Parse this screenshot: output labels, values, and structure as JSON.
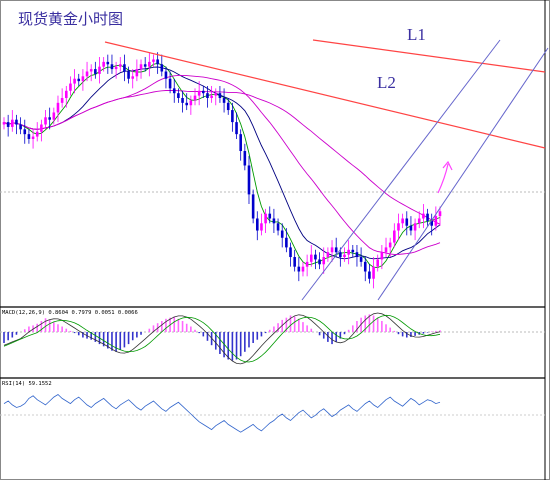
{
  "chart_data": {
    "type": "candlestick",
    "title": "现货黄金小时图",
    "annotations": [
      "L1",
      "L2"
    ],
    "colors": {
      "up_candle": "#ff00ff",
      "down_candle": "#0000cc",
      "ma_fast": "#009900",
      "ma_mid": "#000080",
      "ma_slow": "#cc00cc",
      "trendline": "#ff3333",
      "channel": "#6666cc",
      "macd_hist_pos": "#ff66ff",
      "macd_hist_neg": "#3333cc",
      "rsi": "#3366cc"
    },
    "price_close": [
      100,
      98,
      101,
      99,
      97,
      95,
      93,
      94,
      96,
      99,
      102,
      101,
      104,
      108,
      110,
      113,
      116,
      118,
      117,
      119,
      121,
      122,
      120,
      123,
      125,
      124,
      122,
      123,
      124,
      121,
      118,
      119,
      122,
      124,
      123,
      125,
      126,
      124,
      121,
      118,
      114,
      112,
      110,
      108,
      107,
      109,
      111,
      113,
      112,
      110,
      111,
      112,
      110,
      108,
      105,
      100,
      95,
      88,
      82,
      70,
      60,
      55,
      58,
      62,
      60,
      58,
      55,
      52,
      48,
      44,
      40,
      38,
      40,
      42,
      45,
      43,
      41,
      44,
      46,
      48,
      46,
      44,
      45,
      47,
      46,
      44,
      42,
      38,
      35,
      40,
      43,
      46,
      48,
      50,
      55,
      58,
      60,
      57,
      55,
      58,
      60,
      62,
      59,
      57,
      61,
      63
    ],
    "macd_params": "MACD(12,26,9) 0.8604 0.7979 0.0051 0.0066",
    "macd_hist": [
      -2,
      -1.5,
      -1,
      -0.5,
      0,
      0.5,
      1,
      1.2,
      1.5,
      2,
      2.5,
      2.2,
      1.8,
      1.4,
      1,
      0.6,
      0.2,
      -0.2,
      -0.6,
      -1,
      -1.2,
      -1.4,
      -1.8,
      -2.2,
      -2.6,
      -3,
      -3.4,
      -3.6,
      -3.2,
      -2.8,
      -2.2,
      -1.5,
      -1,
      -0.5,
      0,
      0.6,
      1.2,
      1.6,
      2,
      2.4,
      2.6,
      2.8,
      2.4,
      2,
      1.5,
      1,
      0.4,
      -0.2,
      -0.8,
      -1.6,
      -2.4,
      -3.2,
      -4,
      -4.6,
      -5,
      -5.2,
      -5,
      -4.4,
      -3.6,
      -2.8,
      -2,
      -1.4,
      -0.8,
      -0.2,
      0.4,
      1,
      1.6,
      2.2,
      2.6,
      3,
      2.8,
      2.4,
      1.8,
      1.2,
      0.6,
      0,
      -0.6,
      -1.2,
      -1.8,
      -2.2,
      -1.8,
      -1.2,
      -0.4,
      0.4,
      1.2,
      2,
      2.6,
      3,
      3.2,
      3,
      2.6,
      2,
      1.4,
      0.8,
      0.2,
      -0.4,
      -0.8,
      -1,
      -0.9,
      -0.7,
      -0.5,
      -0.3,
      -0.1,
      0.1,
      0.2,
      0.3
    ],
    "rsi_label": "RSI(14) 59.1552",
    "rsi": [
      58,
      60,
      57,
      55,
      56,
      58,
      62,
      64,
      61,
      59,
      57,
      60,
      63,
      65,
      62,
      60,
      58,
      61,
      63,
      60,
      57,
      55,
      58,
      60,
      62,
      59,
      56,
      54,
      57,
      59,
      61,
      58,
      55,
      53,
      56,
      58,
      60,
      57,
      54,
      52,
      55,
      57,
      59,
      56,
      53,
      50,
      47,
      44,
      42,
      40,
      38,
      41,
      43,
      45,
      42,
      40,
      38,
      36,
      38,
      40,
      42,
      39,
      37,
      40,
      43,
      45,
      48,
      50,
      47,
      45,
      48,
      51,
      53,
      50,
      47,
      49,
      52,
      54,
      51,
      48,
      50,
      53,
      55,
      57,
      54,
      52,
      55,
      58,
      60,
      57,
      55,
      58,
      61,
      63,
      60,
      58,
      56,
      59,
      62,
      60,
      57,
      59,
      61,
      60,
      58,
      59
    ]
  }
}
